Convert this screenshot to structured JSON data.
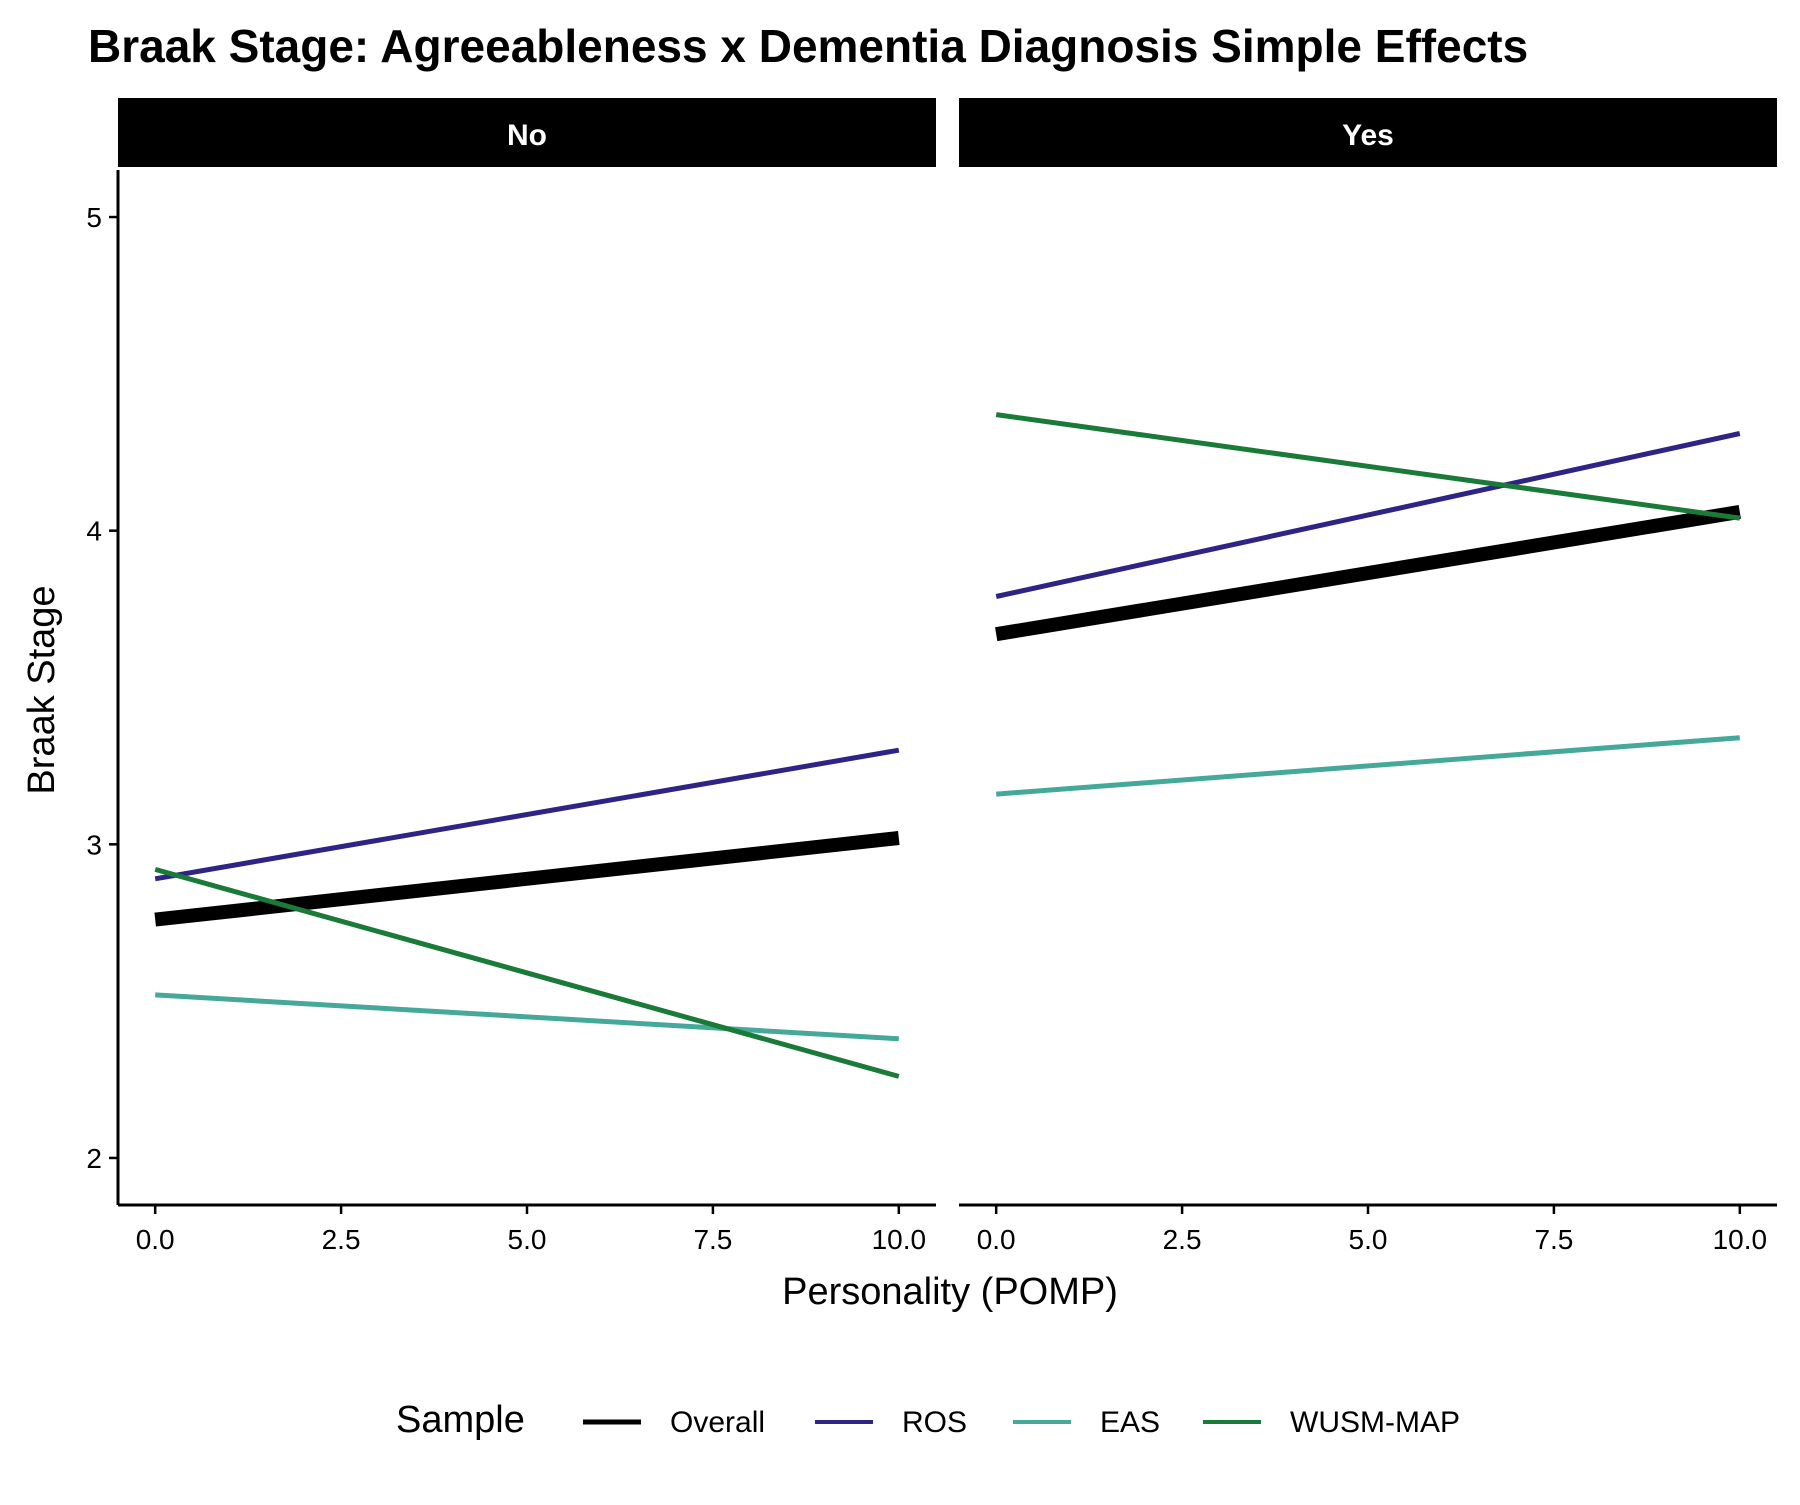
{
  "chart_data": {
    "type": "line",
    "title": "Braak Stage: Agreeableness x Dementia Diagnosis Simple Effects",
    "xlabel": "Personality (POMP)",
    "ylabel": "Braak Stage",
    "xlim": [
      -0.5,
      10.5
    ],
    "ylim": [
      1.85,
      5.15
    ],
    "x_ticks": [
      "0.0",
      "2.5",
      "5.0",
      "7.5",
      "10.0"
    ],
    "y_ticks": [
      "2",
      "3",
      "4",
      "5"
    ],
    "grid": false,
    "legend": {
      "title": "Sample",
      "position": "bottom",
      "entries": [
        "Overall",
        "ROS",
        "EAS",
        "WUSM-MAP"
      ]
    },
    "colors": {
      "Overall": "#000000",
      "ROS": "#2d2485",
      "EAS": "#45a99a",
      "WUSM-MAP": "#1a7a37"
    },
    "panels": [
      {
        "label": "No",
        "series": [
          {
            "name": "Overall",
            "x": [
              0,
              10
            ],
            "y": [
              2.76,
              3.02
            ]
          },
          {
            "name": "ROS",
            "x": [
              0,
              10
            ],
            "y": [
              2.89,
              3.3
            ]
          },
          {
            "name": "EAS",
            "x": [
              0,
              10
            ],
            "y": [
              2.52,
              2.38
            ]
          },
          {
            "name": "WUSM-MAP",
            "x": [
              0,
              10
            ],
            "y": [
              2.92,
              2.26
            ]
          }
        ]
      },
      {
        "label": "Yes",
        "series": [
          {
            "name": "Overall",
            "x": [
              0,
              10
            ],
            "y": [
              3.67,
              4.06
            ]
          },
          {
            "name": "ROS",
            "x": [
              0,
              10
            ],
            "y": [
              3.79,
              4.31
            ]
          },
          {
            "name": "EAS",
            "x": [
              0,
              10
            ],
            "y": [
              3.16,
              3.34
            ]
          },
          {
            "name": "WUSM-MAP",
            "x": [
              0,
              10
            ],
            "y": [
              4.37,
              4.04
            ]
          }
        ]
      }
    ]
  }
}
